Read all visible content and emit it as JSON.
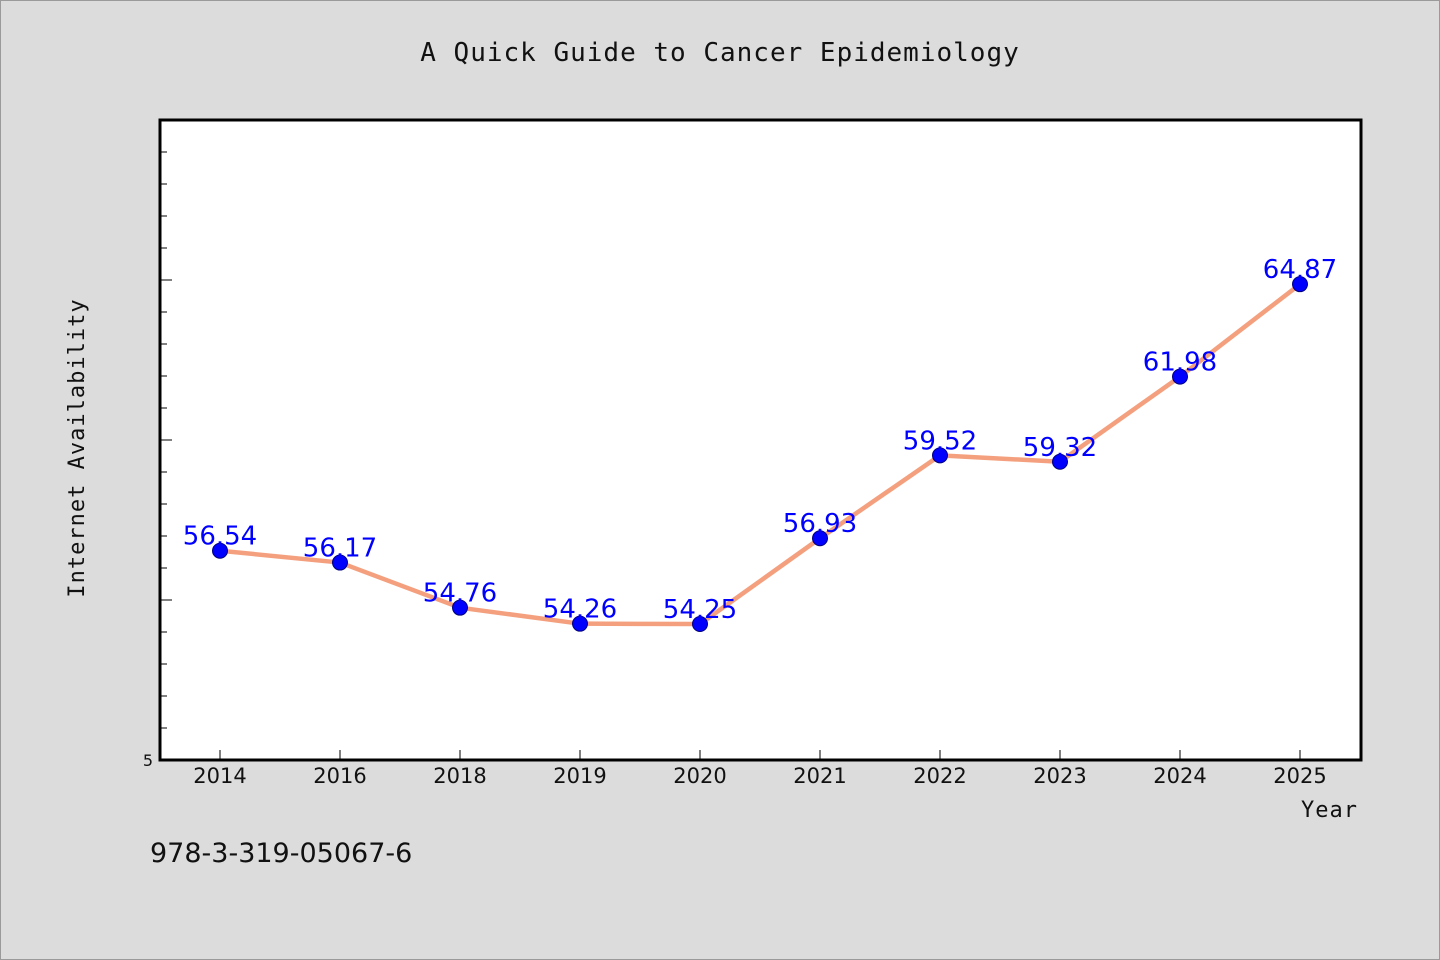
{
  "chart_data": {
    "type": "line",
    "title": "A Quick Guide to Cancer Epidemiology",
    "xlabel": "Year",
    "ylabel": "Internet Availability",
    "categories": [
      "2014",
      "2016",
      "2018",
      "2019",
      "2020",
      "2021",
      "2022",
      "2023",
      "2024",
      "2025"
    ],
    "series": [
      {
        "values": [
          56.54,
          56.17,
          54.76,
          54.26,
          54.25,
          56.93,
          59.52,
          59.32,
          61.98,
          64.87
        ],
        "data_labels": [
          "56.54",
          "56.17",
          "54.76",
          "54.26",
          "54.25",
          "56.93",
          "59.52",
          "59.32",
          "61.98",
          "64.87"
        ]
      }
    ],
    "ylim": [
      50,
      70
    ],
    "yticks_labeled": [
      "5"
    ],
    "grid": false,
    "legend": "none",
    "colors": {
      "line": "#f4a07e",
      "marker": "#0000ff",
      "marker_edge": "#000080",
      "data_label": "#0000ff",
      "background": "#dcdcdc",
      "plot_background": "#ffffff"
    }
  },
  "footer": {
    "isbn": "978-3-319-05067-6"
  }
}
